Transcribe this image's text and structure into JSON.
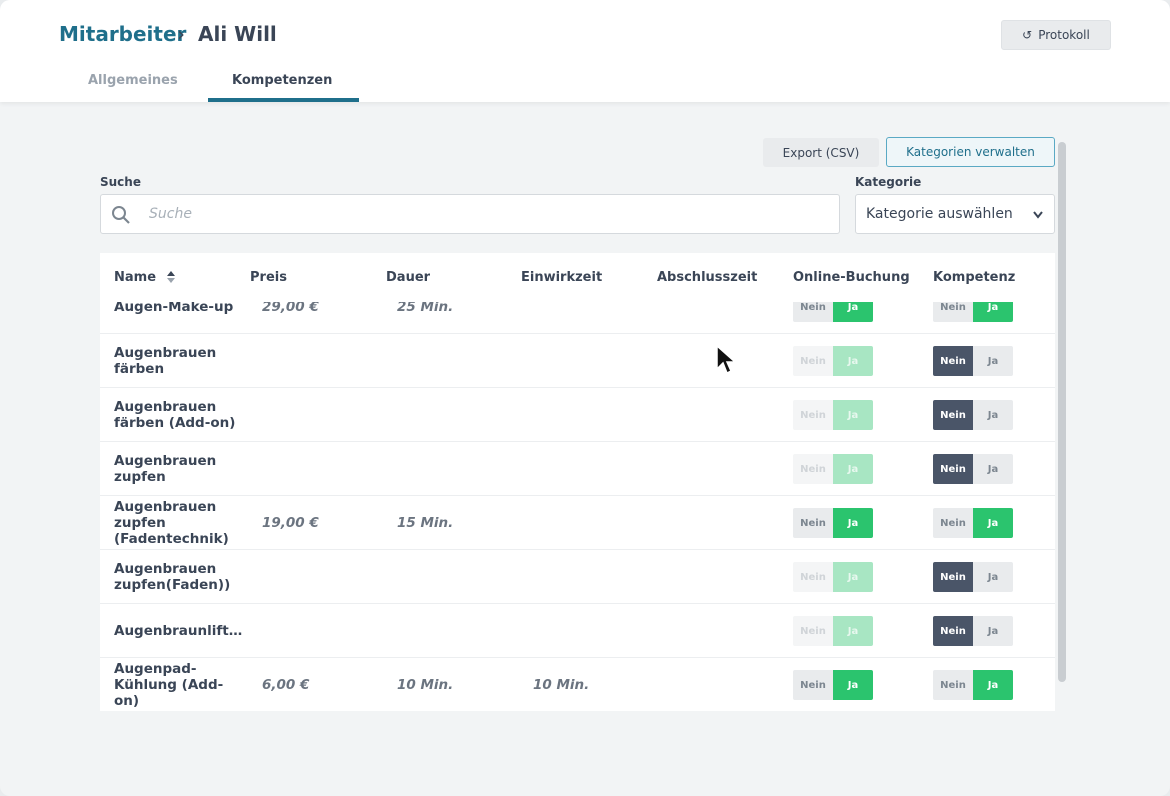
{
  "header": {
    "breadcrumb": "Mitarbeiter",
    "title": "Ali Will",
    "protocol_button": "Protokoll"
  },
  "tabs": [
    "Allgemeines",
    "Kompetenzen"
  ],
  "toolbar": {
    "export": "Export (CSV)",
    "manage": "Kategorien verwalten"
  },
  "filters": {
    "search_label": "Suche",
    "search_placeholder": "Suche",
    "category_label": "Kategorie",
    "category_select": "Kategorie auswählen"
  },
  "table": {
    "columns": [
      "Name",
      "Preis",
      "Dauer",
      "Einwirkzeit",
      "Abschlusszeit",
      "Online-Buchung",
      "Kompetenz"
    ],
    "toggle_off": "Nein",
    "toggle_on": "Ja",
    "rows": [
      {
        "name": "Augen-Make-up",
        "price": "29,00 €",
        "duration": "25 Min.",
        "exposure": null,
        "online": true,
        "competence": true
      },
      {
        "name": "Augenbrauen färben",
        "price": null,
        "duration": null,
        "exposure": null,
        "online": true,
        "competence": false
      },
      {
        "name": "Augenbrauen färben (Add-on)",
        "price": null,
        "duration": null,
        "exposure": null,
        "online": true,
        "competence": false
      },
      {
        "name": "Augenbrauen zupfen",
        "price": null,
        "duration": null,
        "exposure": null,
        "online": true,
        "competence": false
      },
      {
        "name": "Augenbrauen zupfen (Fadentechnik)",
        "price": "19,00 €",
        "duration": "15 Min.",
        "exposure": null,
        "online": true,
        "competence": true
      },
      {
        "name": "Augenbrauen zupfen(Faden))",
        "price": null,
        "duration": null,
        "exposure": null,
        "online": true,
        "competence": false
      },
      {
        "name": "Augenbraunlift…",
        "price": null,
        "duration": null,
        "exposure": null,
        "online": true,
        "competence": false
      },
      {
        "name": "Augenpad-Kühlung (Add-on)",
        "price": "6,00 €",
        "duration": "10 Min.",
        "exposure": "10 Min.",
        "online": true,
        "competence": true
      }
    ]
  }
}
